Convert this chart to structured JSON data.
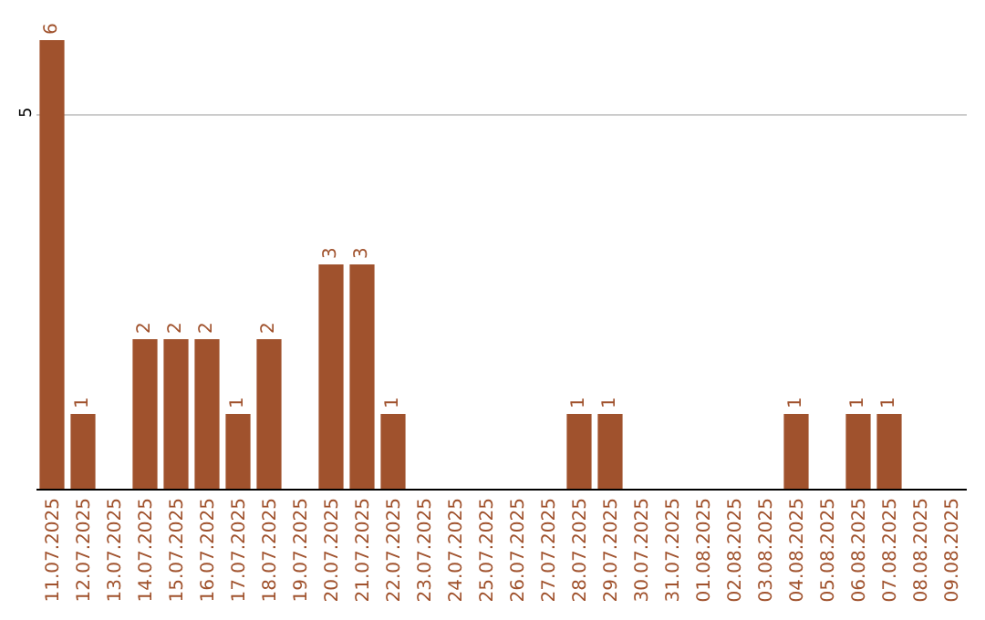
{
  "chart_data": {
    "type": "bar",
    "categories": [
      "11.07.2025",
      "12.07.2025",
      "13.07.2025",
      "14.07.2025",
      "15.07.2025",
      "16.07.2025",
      "17.07.2025",
      "18.07.2025",
      "19.07.2025",
      "20.07.2025",
      "21.07.2025",
      "22.07.2025",
      "23.07.2025",
      "24.07.2025",
      "25.07.2025",
      "26.07.2025",
      "27.07.2025",
      "28.07.2025",
      "29.07.2025",
      "30.07.2025",
      "31.07.2025",
      "01.08.2025",
      "02.08.2025",
      "03.08.2025",
      "04.08.2025",
      "05.08.2025",
      "06.08.2025",
      "07.08.2025",
      "08.08.2025",
      "09.08.2025"
    ],
    "values": [
      6,
      1,
      0,
      2,
      2,
      2,
      1,
      2,
      0,
      3,
      3,
      1,
      0,
      0,
      0,
      0,
      0,
      1,
      1,
      0,
      0,
      0,
      0,
      0,
      1,
      0,
      1,
      1,
      0,
      0
    ],
    "value_labels": [
      "6",
      "1",
      null,
      "2",
      "2",
      "2",
      "1",
      "2",
      null,
      "3",
      "3",
      "1",
      null,
      null,
      null,
      null,
      null,
      "1",
      "1",
      null,
      null,
      null,
      null,
      null,
      "1",
      null,
      "1",
      "1",
      null,
      null
    ],
    "color": "#a0522d",
    "ylim": [
      0,
      6
    ],
    "yticks": [
      5
    ],
    "grid": "y"
  }
}
